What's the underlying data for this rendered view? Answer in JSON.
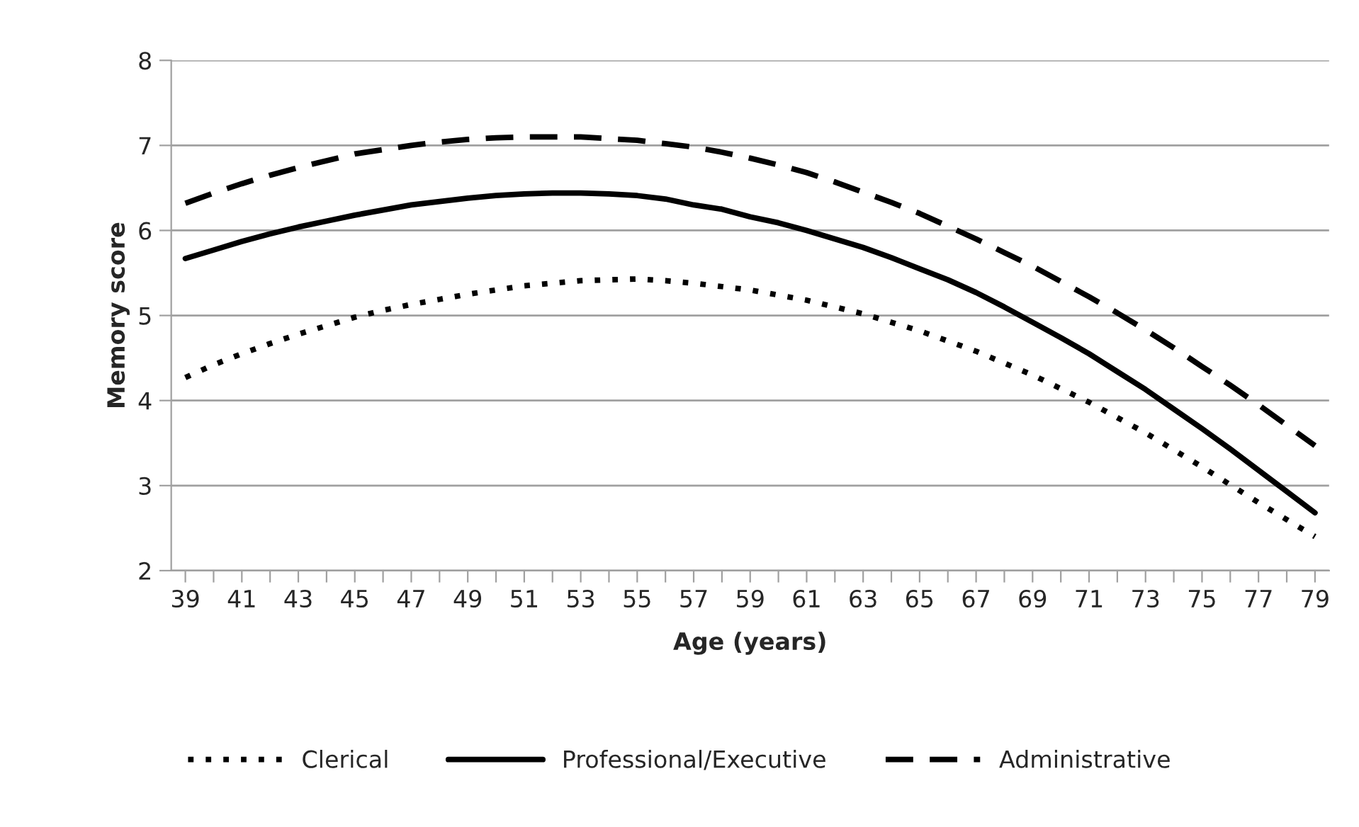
{
  "chart_data": {
    "type": "line",
    "xlabel": "Age (years)",
    "ylabel": "Memory score",
    "categories": [
      "39",
      null,
      "41",
      null,
      "43",
      null,
      "45",
      null,
      "47",
      null,
      "49",
      null,
      "51",
      null,
      "53",
      null,
      "55",
      null,
      "57",
      null,
      "59",
      null,
      "61",
      null,
      "63",
      null,
      "65",
      null,
      "67",
      null,
      "69",
      null,
      "71",
      null,
      "73",
      null,
      "75",
      null,
      "77",
      null,
      "79"
    ],
    "ylim": [
      2,
      8
    ],
    "yticks": [
      2,
      3,
      4,
      5,
      6,
      7,
      8
    ],
    "grid": "y",
    "legend": "bottom",
    "marker": "none",
    "series": [
      {
        "name": "Clerical",
        "color": "#000000",
        "line_style": "dotted",
        "values": [
          4.27,
          4.42,
          4.55,
          4.67,
          4.78,
          4.88,
          4.98,
          5.06,
          5.13,
          5.19,
          5.25,
          5.3,
          5.35,
          5.38,
          5.41,
          5.42,
          5.43,
          5.41,
          5.38,
          5.34,
          5.3,
          5.24,
          5.18,
          5.1,
          5.02,
          4.92,
          4.82,
          4.7,
          4.58,
          4.44,
          4.3,
          4.14,
          3.98,
          3.8,
          3.62,
          3.42,
          3.22,
          3.01,
          2.8,
          2.6,
          2.4
        ]
      },
      {
        "name": "Professional/Executive",
        "color": "#000000",
        "line_style": "solid",
        "values": [
          5.67,
          5.77,
          5.87,
          5.96,
          6.04,
          6.11,
          6.18,
          6.24,
          6.3,
          6.34,
          6.38,
          6.41,
          6.43,
          6.44,
          6.44,
          6.43,
          6.41,
          6.37,
          6.3,
          6.25,
          6.16,
          6.09,
          6.0,
          5.9,
          5.8,
          5.68,
          5.55,
          5.42,
          5.27,
          5.1,
          4.92,
          4.74,
          4.55,
          4.34,
          4.13,
          3.9,
          3.67,
          3.43,
          3.18,
          2.93,
          2.68
        ]
      },
      {
        "name": "Administrative",
        "color": "#000000",
        "line_style": "dashed",
        "values": [
          6.32,
          6.44,
          6.55,
          6.65,
          6.74,
          6.82,
          6.9,
          6.95,
          7.0,
          7.04,
          7.07,
          7.09,
          7.1,
          7.1,
          7.1,
          7.08,
          7.06,
          7.02,
          6.98,
          6.92,
          6.85,
          6.77,
          6.68,
          6.57,
          6.45,
          6.33,
          6.2,
          6.05,
          5.9,
          5.74,
          5.58,
          5.4,
          5.22,
          5.03,
          4.83,
          4.62,
          4.4,
          4.18,
          3.95,
          3.71,
          3.47
        ]
      }
    ]
  }
}
